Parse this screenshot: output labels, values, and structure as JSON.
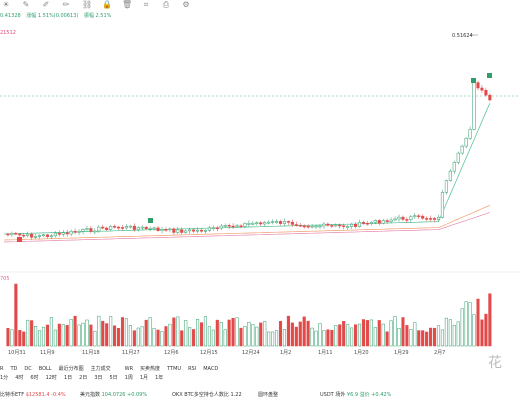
{
  "header": {
    "price": "0.41328",
    "change": "涨幅 1.51%(0.00613)",
    "amplitude": "振幅 2.51%"
  },
  "ma_tag": "21512",
  "vol_tag": "705",
  "peak_label": "0.51624",
  "toolbar_icons": [
    "sun-icon",
    "paint-icon",
    "pencil-icon",
    "pencil-alt-icon",
    "link-icon",
    "lock-icon",
    "delete-icon",
    "crop-icon",
    "print-icon",
    "gear-icon"
  ],
  "x_labels": [
    "10月31",
    "11月9",
    "11月18",
    "11月27",
    "12月6",
    "12月15",
    "12月24",
    "1月2",
    "1月11",
    "1月20",
    "1月29",
    "2月7"
  ],
  "timeframes": {
    "row1": [
      "R",
      "TD",
      "DC",
      "BOLL",
      "最近分布图",
      "主力成交",
      "",
      "WR",
      "买卖热度",
      "TTMU",
      "RSI",
      "MACD"
    ],
    "row2": [
      "1分",
      "4时",
      "6时",
      "12时",
      "1日",
      "2日",
      "3日",
      "5日",
      "1周",
      "1月",
      "1年"
    ]
  },
  "tickers": [
    {
      "name": "比特币ETF",
      "value": "$12581.4",
      "chg": "-0.4%",
      "color": "#e24a4a"
    },
    {
      "name": "美元指数",
      "value": "104.0726",
      "chg": "+0.09%",
      "color": "#2b9c68"
    },
    {
      "name": "OKX BTC多空持仓人数比",
      "value": "1.22",
      "chg": "",
      "color": "#333333"
    },
    {
      "name": "圆环盘整",
      "value": "",
      "chg": "",
      "color": "#333333"
    },
    {
      "name": "USDT 场外",
      "value": "¥6.9",
      "chg": "溢价 +0.42%",
      "color": "#2b9c68"
    }
  ],
  "watermark": "花"
}
